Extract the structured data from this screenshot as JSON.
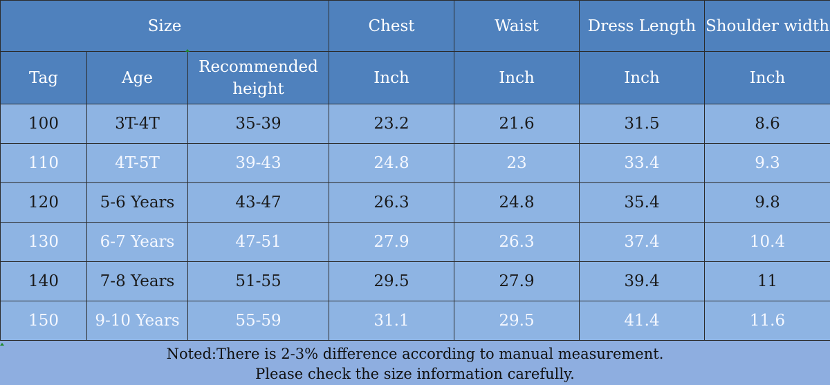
{
  "header": {
    "row1": {
      "size": "Size",
      "chest": "Chest",
      "waist": "Waist",
      "dress_length": "Dress Length",
      "shoulder_width": "Shoulder width"
    },
    "row2": {
      "tag": "Tag",
      "age": "Age",
      "height_line1": "Recommended",
      "height_line2": "height",
      "chest_unit": "Inch",
      "waist_unit": "Inch",
      "length_unit": "Inch",
      "shoulder_unit": "Inch"
    }
  },
  "rows": [
    {
      "tag": "100",
      "age": "3T-4T",
      "height": "35-39",
      "chest": "23.2",
      "waist": "21.6",
      "length": "31.5",
      "shoulder": "8.6"
    },
    {
      "tag": "110",
      "age": "4T-5T",
      "height": "39-43",
      "chest": "24.8",
      "waist": "23",
      "length": "33.4",
      "shoulder": "9.3"
    },
    {
      "tag": "120",
      "age": "5-6 Years",
      "height": "43-47",
      "chest": "26.3",
      "waist": "24.8",
      "length": "35.4",
      "shoulder": "9.8"
    },
    {
      "tag": "130",
      "age": "6-7 Years",
      "height": "47-51",
      "chest": "27.9",
      "waist": "26.3",
      "length": "37.4",
      "shoulder": "10.4"
    },
    {
      "tag": "140",
      "age": "7-8 Years",
      "height": "51-55",
      "chest": "29.5",
      "waist": "27.9",
      "length": "39.4",
      "shoulder": "11"
    },
    {
      "tag": "150",
      "age": "9-10 Years",
      "height": "55-59",
      "chest": "31.1",
      "waist": "29.5",
      "length": "41.4",
      "shoulder": "11.6"
    }
  ],
  "note": {
    "line1": "Noted:There is 2-3% difference according to manual measurement.",
    "line2": "Please check the size information carefully."
  },
  "colors": {
    "header_bg": "#4f81bd",
    "body_bg": "#8eb4e3",
    "dark_text": "#1a1a1a",
    "light_text": "#f5f8ff"
  }
}
